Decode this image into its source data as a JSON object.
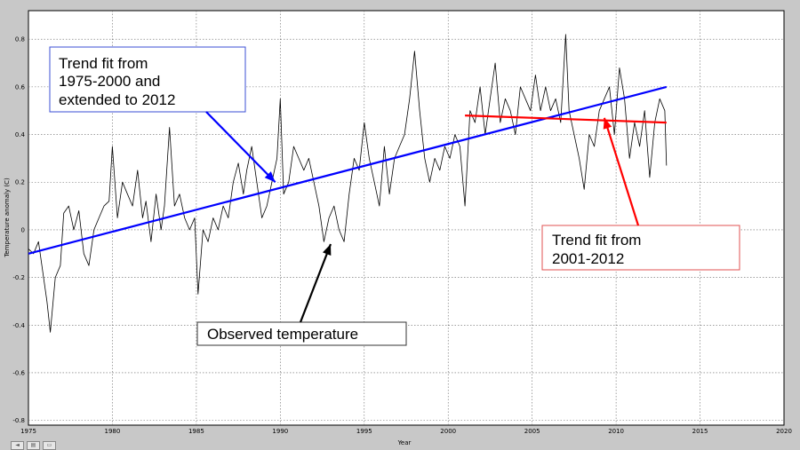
{
  "chart_data": {
    "type": "line",
    "title": "",
    "xlabel": "Year",
    "ylabel": "Temperature anomaly (C)",
    "xlim": [
      1975,
      2020
    ],
    "ylim": [
      -0.82,
      0.92
    ],
    "grid": true,
    "xticks": [
      1975,
      1980,
      1985,
      1990,
      1995,
      2000,
      2005,
      2010,
      2015,
      2020
    ],
    "yticks": [
      -0.8,
      -0.6,
      -0.4,
      -0.2,
      0,
      0.2,
      0.4,
      0.6,
      0.8
    ],
    "ytick_labels": [
      "-0.8",
      "-0.6",
      "-0.4",
      "-0.2",
      "0",
      "0.2",
      "0.4",
      "0.6",
      "0.8"
    ],
    "series": [
      {
        "color": "#000000",
        "style": "observed",
        "x": [
          1975.0,
          1975.3,
          1975.6,
          1975.9,
          1976.1,
          1976.3,
          1976.6,
          1976.9,
          1977.1,
          1977.4,
          1977.7,
          1978.0,
          1978.3,
          1978.6,
          1978.9,
          1979.2,
          1979.5,
          1979.8,
          1980.0,
          1980.3,
          1980.6,
          1980.9,
          1981.2,
          1981.5,
          1981.8,
          1982.0,
          1982.3,
          1982.6,
          1982.9,
          1983.1,
          1983.4,
          1983.7,
          1984.0,
          1984.3,
          1984.6,
          1984.9,
          1985.1,
          1985.4,
          1985.7,
          1986.0,
          1986.3,
          1986.6,
          1986.9,
          1987.2,
          1987.5,
          1987.8,
          1988.0,
          1988.3,
          1988.6,
          1988.9,
          1989.2,
          1989.5,
          1989.8,
          1990.0,
          1990.2,
          1990.5,
          1990.8,
          1991.1,
          1991.4,
          1991.7,
          1992.0,
          1992.3,
          1992.6,
          1992.9,
          1993.2,
          1993.5,
          1993.8,
          1994.1,
          1994.4,
          1994.7,
          1995.0,
          1995.3,
          1995.6,
          1995.9,
          1996.2,
          1996.5,
          1996.8,
          1997.1,
          1997.4,
          1997.7,
          1998.0,
          1998.3,
          1998.6,
          1998.9,
          1999.2,
          1999.5,
          1999.8,
          2000.1,
          2000.4,
          2000.7,
          2001.0,
          2001.3,
          2001.6,
          2001.9,
          2002.2,
          2002.5,
          2002.8,
          2003.1,
          2003.4,
          2003.7,
          2004.0,
          2004.3,
          2004.6,
          2004.9,
          2005.2,
          2005.5,
          2005.8,
          2006.1,
          2006.4,
          2006.7,
          2007.0,
          2007.2,
          2007.5,
          2007.8,
          2008.1,
          2008.4,
          2008.7,
          2009.0,
          2009.3,
          2009.6,
          2009.9,
          2010.2,
          2010.5,
          2010.8,
          2011.1,
          2011.4,
          2011.7,
          2012.0,
          2012.3,
          2012.6,
          2012.9,
          2013.0
        ],
        "y": [
          -0.08,
          -0.1,
          -0.05,
          -0.2,
          -0.3,
          -0.43,
          -0.2,
          -0.15,
          0.07,
          0.1,
          0.0,
          0.08,
          -0.1,
          -0.15,
          0.0,
          0.05,
          0.1,
          0.12,
          0.35,
          0.05,
          0.2,
          0.15,
          0.1,
          0.25,
          0.05,
          0.12,
          -0.05,
          0.15,
          0.0,
          0.1,
          0.43,
          0.1,
          0.15,
          0.05,
          0.0,
          0.05,
          -0.27,
          0.0,
          -0.05,
          0.05,
          0.0,
          0.1,
          0.05,
          0.2,
          0.28,
          0.15,
          0.25,
          0.35,
          0.2,
          0.05,
          0.1,
          0.2,
          0.3,
          0.55,
          0.15,
          0.2,
          0.35,
          0.3,
          0.25,
          0.3,
          0.2,
          0.1,
          -0.05,
          0.05,
          0.1,
          0.0,
          -0.05,
          0.15,
          0.3,
          0.25,
          0.45,
          0.3,
          0.2,
          0.1,
          0.35,
          0.15,
          0.3,
          0.35,
          0.4,
          0.55,
          0.75,
          0.5,
          0.3,
          0.2,
          0.3,
          0.25,
          0.35,
          0.3,
          0.4,
          0.35,
          0.1,
          0.5,
          0.45,
          0.6,
          0.4,
          0.55,
          0.7,
          0.45,
          0.55,
          0.5,
          0.4,
          0.6,
          0.55,
          0.5,
          0.65,
          0.5,
          0.6,
          0.5,
          0.55,
          0.45,
          0.82,
          0.5,
          0.4,
          0.3,
          0.17,
          0.4,
          0.35,
          0.5,
          0.55,
          0.6,
          0.4,
          0.68,
          0.55,
          0.3,
          0.45,
          0.35,
          0.5,
          0.22,
          0.45,
          0.55,
          0.5,
          0.27
        ]
      },
      {
        "color": "#0000ff",
        "style": "trend-1975-2000",
        "x": [
          1975,
          2013
        ],
        "y": [
          -0.1,
          0.6
        ]
      },
      {
        "color": "#ff0000",
        "style": "trend-2001-2012",
        "x": [
          2001,
          2013
        ],
        "y": [
          0.48,
          0.45
        ]
      }
    ],
    "annotations": [
      {
        "id": "blue-callout",
        "lines": [
          "Trend fit from",
          "1975-2000 and",
          "extended to 2012"
        ],
        "border_color": "#3b4fd6",
        "arrow_color": "#0000ff",
        "arrow_target": [
          1989.7,
          0.2
        ]
      },
      {
        "id": "black-callout",
        "lines": [
          "Observed temperature"
        ],
        "border_color": "#333333",
        "arrow_color": "#000000",
        "arrow_target": [
          1993.0,
          -0.06
        ]
      },
      {
        "id": "red-callout",
        "lines": [
          "Trend fit from",
          "2001-2012"
        ],
        "border_color": "#e05050",
        "arrow_color": "#ff0000",
        "arrow_target": [
          2009.3,
          0.47
        ]
      }
    ]
  },
  "viewer_bar": {
    "buttons": [
      "◄",
      "▤",
      "▭"
    ]
  }
}
